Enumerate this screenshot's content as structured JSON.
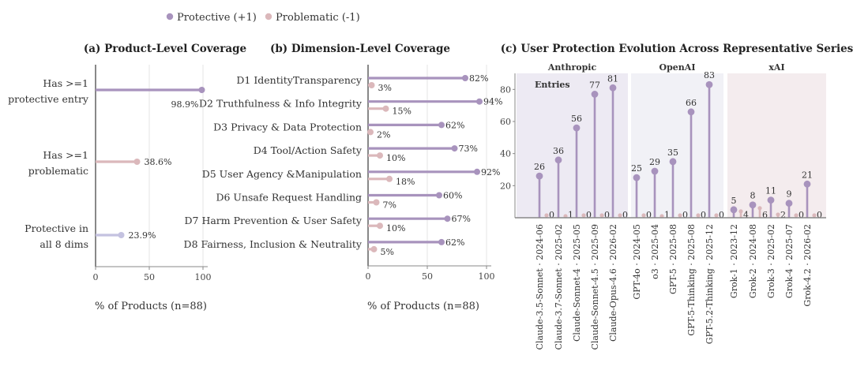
{
  "legend": {
    "protective": "Protective (+1)",
    "problematic": "Problematic (-1)"
  },
  "colors": {
    "protective": "#a893bd",
    "problematic": "#dbb8bb",
    "protective_all": "#c4c2e0",
    "axis": "#888888",
    "grid": "#e4e4e4",
    "band_anthropic": "#edeaf3",
    "band_openai": "#f1f1f6",
    "band_xai": "#f4ecee"
  },
  "chart_data": [
    {
      "type": "bar",
      "orientation": "horizontal",
      "title": "(a) Product-Level Coverage",
      "xlabel": "% of Products (n=88)",
      "xlim": [
        0,
        100
      ],
      "xticks": [
        0,
        50,
        100
      ],
      "grid": "vertical",
      "categories": [
        {
          "label_lines": [
            "Has >=1",
            "protective entry"
          ],
          "value": 98.9,
          "value_label": "98.9%",
          "kind": "protective"
        },
        {
          "label_lines": [
            "Has >=1",
            "problematic"
          ],
          "value": 38.6,
          "value_label": "38.6%",
          "kind": "problematic"
        },
        {
          "label_lines": [
            "Protective in",
            "all 8 dims"
          ],
          "value": 23.9,
          "value_label": "23.9%",
          "kind": "protective_all"
        }
      ]
    },
    {
      "type": "bar",
      "orientation": "horizontal",
      "title": "(b) Dimension-Level Coverage",
      "xlabel": "% of Products (n=88)",
      "xlim": [
        0,
        100
      ],
      "xticks": [
        0,
        50,
        100
      ],
      "grid": "vertical",
      "categories": [
        "D1 IdentityTransparency",
        "D2 Truthfulness & Info Integrity",
        "D3 Privacy & Data Protection",
        "D4 Tool/Action Safety",
        "D5 User Agency &Manipulation",
        "D6 Unsafe Request Handling",
        "D7 Harm Prevention & User Safety",
        "D8 Fairness, Inclusion & Neutrality"
      ],
      "series": [
        {
          "name": "Protective (+1)",
          "values": [
            82,
            94,
            62,
            73,
            92,
            60,
            67,
            62
          ],
          "labels": [
            "82%",
            "94%",
            "62%",
            "73%",
            "92%",
            "60%",
            "67%",
            "62%"
          ]
        },
        {
          "name": "Problematic (-1)",
          "values": [
            3,
            15,
            2,
            10,
            18,
            7,
            10,
            5
          ],
          "labels": [
            "3%",
            "15%",
            "2%",
            "10%",
            "18%",
            "7%",
            "10%",
            "5%"
          ]
        }
      ]
    },
    {
      "type": "bar",
      "orientation": "vertical",
      "title": "(c) User Protection Evolution Across Representative Series",
      "ylabel_inside": "Entries",
      "ylim": [
        0,
        90
      ],
      "yticks": [
        20,
        40,
        60,
        80
      ],
      "groups": [
        {
          "name": "Anthropic",
          "band": "band_anthropic",
          "items": [
            {
              "label": "Claude-3.5-Sonnet · 2024-06",
              "protective": 26,
              "problematic": 0
            },
            {
              "label": "Claude-3.7-Sonnet · 2025-02",
              "protective": 36,
              "problematic": 1
            },
            {
              "label": "Claude-Sonnet-4 · 2025-05",
              "protective": 56,
              "problematic": 0
            },
            {
              "label": "Claude-Sonnet-4.5 · 2025-09",
              "protective": 77,
              "problematic": 0
            },
            {
              "label": "Claude-Opus-4.6 · 2026-02",
              "protective": 81,
              "problematic": 0
            }
          ]
        },
        {
          "name": "OpenAI",
          "band": "band_openai",
          "items": [
            {
              "label": "GPT-4o · 2024-05",
              "protective": 25,
              "problematic": 0
            },
            {
              "label": "o3 · 2025-04",
              "protective": 29,
              "problematic": 1
            },
            {
              "label": "GPT-5 · 2025-08",
              "protective": 35,
              "problematic": 0
            },
            {
              "label": "GPT-5-Thinking · 2025-08",
              "protective": 66,
              "problematic": 0
            },
            {
              "label": "GPT-5.2-Thinking · 2025-12",
              "protective": 83,
              "problematic": 0
            }
          ]
        },
        {
          "name": "xAI",
          "band": "band_xai",
          "items": [
            {
              "label": "Grok-1 · 2023-12",
              "protective": 5,
              "problematic": 4
            },
            {
              "label": "Grok-2 · 2024-08",
              "protective": 8,
              "problematic": 6
            },
            {
              "label": "Grok-3 · 2025-02",
              "protective": 11,
              "problematic": 2
            },
            {
              "label": "Grok-4 · 2025-07",
              "protective": 9,
              "problematic": 0
            },
            {
              "label": "Grok-4.2 · 2026-02",
              "protective": 21,
              "problematic": 0
            }
          ]
        }
      ]
    }
  ]
}
